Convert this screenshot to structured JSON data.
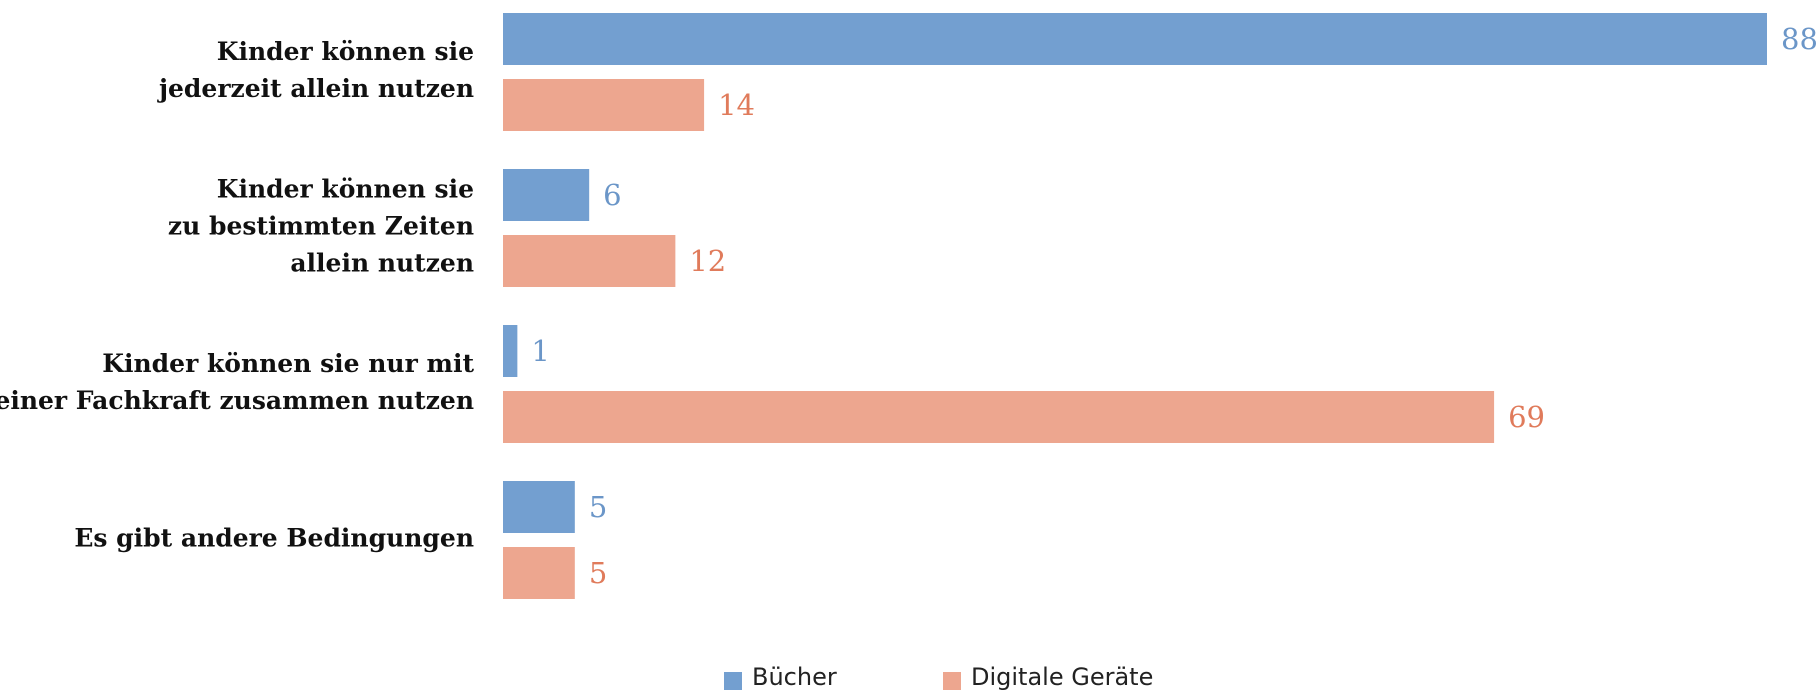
{
  "chart_data": {
    "type": "hbar",
    "categories": [
      [
        "Kinder können sie",
        "jederzeit allein nutzen"
      ],
      [
        "Kinder können sie",
        "zu bestimmten Zeiten",
        "allein nutzen"
      ],
      [
        "Kinder können sie nur mit",
        "einer Fachkraft zusammen nutzen"
      ],
      [
        "Es gibt andere Bedingungen"
      ]
    ],
    "series": [
      {
        "name": "Bücher",
        "color": "#739fd0",
        "label_color": "#6b96c8",
        "values": [
          88,
          6,
          1,
          5
        ]
      },
      {
        "name": "Digitale Geräte",
        "color": "#eda68f",
        "label_color": "#e07b5b",
        "values": [
          14,
          12,
          69,
          5
        ]
      }
    ],
    "legend": "bottom"
  }
}
